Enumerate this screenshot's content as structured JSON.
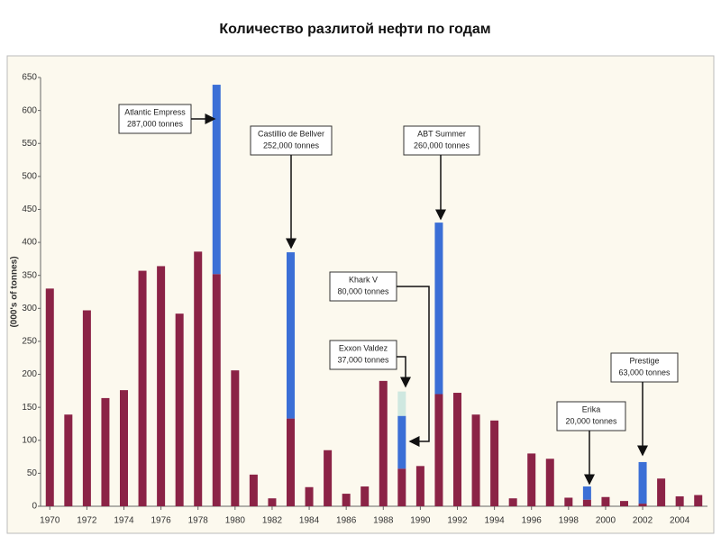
{
  "chart_data": {
    "type": "stacked-bar",
    "title": "Количество разлитой нефти по годам",
    "y_label": "(000's of tonnes)",
    "categories": [
      "1970",
      null,
      "1972",
      null,
      "1974",
      null,
      "1976",
      null,
      "1978",
      null,
      "1980",
      null,
      "1982",
      null,
      "1984",
      null,
      "1986",
      null,
      "1988",
      null,
      "1990",
      null,
      "1992",
      null,
      "1994",
      null,
      "1996",
      null,
      "1998",
      null,
      "2000",
      null,
      "2002",
      null,
      "2004",
      null
    ],
    "series": [
      {
        "color": "#8b2346",
        "values": [
          330,
          139,
          297,
          164,
          176,
          357,
          364,
          292,
          386,
          352,
          206,
          48,
          12,
          133,
          29,
          85,
          19,
          30,
          190,
          57,
          61,
          170,
          172,
          139,
          130,
          12,
          80,
          72,
          13,
          10,
          14,
          8,
          4,
          42,
          15,
          17
        ]
      },
      {
        "color": "#3b6fd6",
        "values": [
          null,
          null,
          null,
          null,
          null,
          null,
          null,
          null,
          null,
          287,
          null,
          null,
          null,
          252,
          null,
          null,
          null,
          null,
          null,
          80,
          null,
          260,
          null,
          null,
          null,
          null,
          null,
          null,
          null,
          20,
          null,
          null,
          63,
          null,
          null,
          null
        ]
      },
      {
        "color": "#cfe8e0",
        "values": [
          null,
          null,
          null,
          null,
          null,
          null,
          null,
          null,
          null,
          null,
          null,
          null,
          null,
          null,
          null,
          null,
          null,
          null,
          null,
          37,
          null,
          null,
          null,
          null,
          null,
          null,
          null,
          null,
          null,
          null,
          null,
          null,
          null,
          null,
          null,
          null
        ]
      }
    ],
    "ylim": [
      0,
      650
    ],
    "yticks": [
      0,
      50,
      100,
      150,
      200,
      250,
      300,
      350,
      400,
      450,
      500,
      550,
      600,
      650
    ],
    "annotations": [
      {
        "lines": [
          "Atlantic Empress",
          "287,000 tonnes"
        ]
      },
      {
        "lines": [
          "Castillio de Bellver",
          "252,000 tonnes"
        ]
      },
      {
        "lines": [
          "ABT Summer",
          "260,000 tonnes"
        ]
      },
      {
        "lines": [
          "Khark V",
          "80,000 tonnes"
        ]
      },
      {
        "lines": [
          "Exxon Valdez",
          "37,000 tonnes"
        ]
      },
      {
        "lines": [
          "Erika",
          "20,000 tonnes"
        ]
      },
      {
        "lines": [
          "Prestige",
          "63,000 tonnes"
        ]
      }
    ]
  }
}
